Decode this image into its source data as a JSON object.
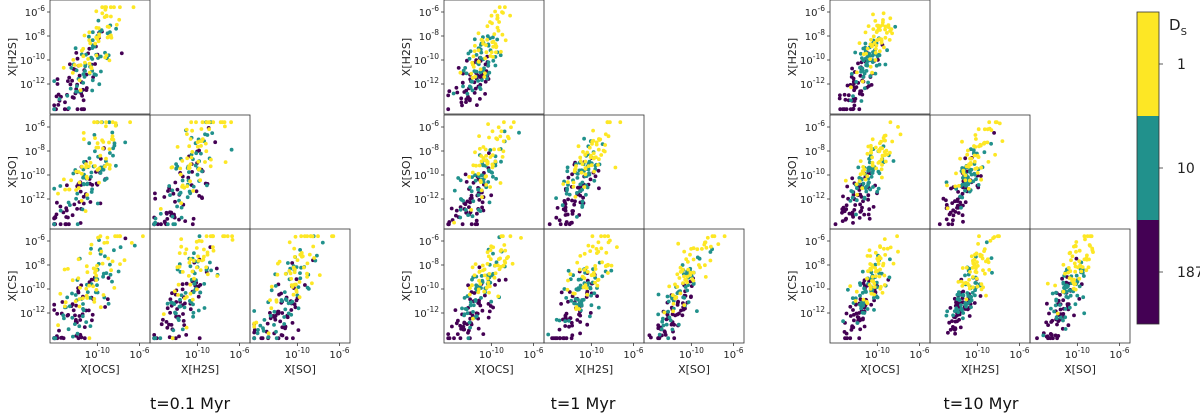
{
  "chart_data": {
    "type": "scatter",
    "description_layout": "corner-plot grid",
    "log_scale": true,
    "grid": false,
    "species": [
      "OCS",
      "H2S",
      "SO",
      "CS"
    ],
    "axis_labels": {
      "x": [
        "X[OCS]",
        "X[H2S]",
        "X[SO]"
      ],
      "y": [
        "X[H2S]",
        "X[SO]",
        "X[CS]"
      ]
    },
    "x_ticks": [
      "10",
      "10"
    ],
    "x_tick_exponents": [
      "-10",
      "-6"
    ],
    "x_tick_values_log10": [
      -10,
      -6
    ],
    "y_ticks": [
      "10",
      "10",
      "10",
      "10"
    ],
    "y_tick_exponents": [
      "-6",
      "-8",
      "-10",
      "-12"
    ],
    "y_tick_values_log10": [
      -6,
      -8,
      -10,
      -12
    ],
    "xlim_log10": [
      -14.5,
      -5
    ],
    "ylim_log10": [
      -14.5,
      -5
    ],
    "colorbar": {
      "title": "D",
      "title_sub": "S",
      "levels": [
        {
          "label": "1",
          "color": "#fde725"
        },
        {
          "label": "10",
          "color": "#21918c"
        },
        {
          "label": "187",
          "color": "#440154"
        }
      ],
      "position": "right"
    },
    "groups": [
      {
        "label": "t=0.1 Myr"
      },
      {
        "label": "t=1 Myr"
      },
      {
        "label": "t=10 Myr"
      }
    ]
  }
}
